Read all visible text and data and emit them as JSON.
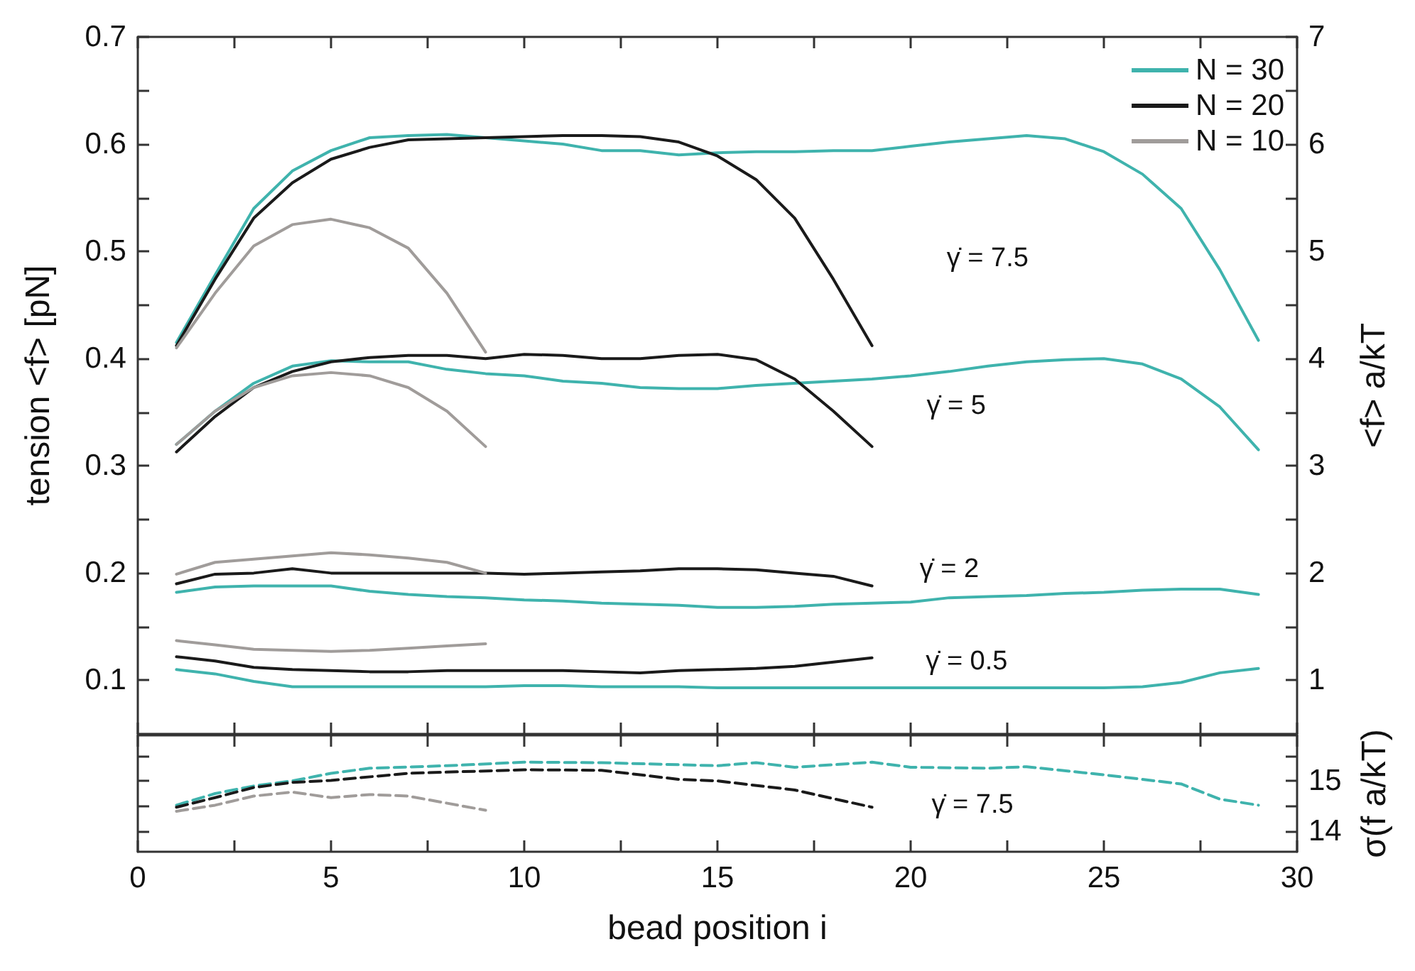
{
  "chart_data": [
    {
      "type": "line",
      "ylabel": "tension <f> [pN]",
      "y2label": "<f> a/kT",
      "xlim": [
        0,
        30
      ],
      "xticks": [
        0,
        {
          "value": 2.5,
          "label": null
        },
        5,
        {
          "value": 7.5,
          "label": null
        },
        10,
        {
          "value": 12.5,
          "label": null
        },
        15,
        {
          "value": 17.5,
          "label": null
        },
        20,
        {
          "value": 22.5,
          "label": null
        },
        25,
        {
          "value": 27.5,
          "label": null
        },
        30
      ],
      "ylim": [
        0.05,
        0.7
      ],
      "yticks": [
        0.1,
        {
          "value": 0.15,
          "label": null
        },
        0.2,
        {
          "value": 0.25,
          "label": null
        },
        0.3,
        {
          "value": 0.35,
          "label": null
        },
        0.4,
        {
          "value": 0.45,
          "label": null
        },
        0.5,
        {
          "value": 0.55,
          "label": null
        },
        0.6,
        {
          "value": 0.65,
          "label": null
        },
        0.7
      ],
      "y2lim": [
        0.5,
        7
      ],
      "y2ticks": [
        1,
        {
          "value": 1.5,
          "label": null
        },
        2,
        {
          "value": 2.5,
          "label": null
        },
        3,
        {
          "value": 3.5,
          "label": null
        },
        4,
        {
          "value": 4.5,
          "label": null
        },
        5,
        {
          "value": 5.5,
          "label": null
        },
        6,
        {
          "value": 6.5,
          "label": null
        },
        7
      ],
      "tick_labels": "y",
      "legend": "top right",
      "grid": false,
      "marker": "none",
      "line_style": "solid",
      "annotations": [
        "γ̇ = 7.5",
        "γ̇ = 5",
        "γ̇ = 2",
        "γ̇ = 0.5"
      ],
      "series": [
        {
          "name": "N = 30",
          "color": "#3fb3ad",
          "x": [
            1,
            2,
            3,
            4,
            5,
            6,
            7,
            8,
            9,
            10,
            11,
            12,
            13,
            14,
            15,
            16,
            17,
            18,
            19,
            20,
            21,
            22,
            23,
            24,
            25,
            26,
            27,
            28,
            29
          ],
          "values": [
            0.415,
            0.478,
            0.54,
            0.575,
            0.594,
            0.606,
            0.608,
            0.609,
            0.606,
            0.603,
            0.6,
            0.594,
            0.594,
            0.59,
            0.592,
            0.593,
            0.593,
            0.594,
            0.594,
            0.598,
            0.602,
            0.605,
            0.608,
            0.605,
            0.593,
            0.572,
            0.54,
            0.483,
            0.417
          ]
        },
        {
          "name": "N = 20",
          "color": "#1a1a1a",
          "x": [
            1,
            2,
            3,
            4,
            5,
            6,
            7,
            8,
            9,
            10,
            11,
            12,
            13,
            14,
            15,
            16,
            17,
            18,
            19
          ],
          "values": [
            0.412,
            0.474,
            0.531,
            0.564,
            0.586,
            0.597,
            0.604,
            0.605,
            0.606,
            0.607,
            0.608,
            0.608,
            0.607,
            0.602,
            0.589,
            0.567,
            0.531,
            0.474,
            0.412
          ]
        },
        {
          "name": "N = 10",
          "color": "#a09c9a",
          "x": [
            1,
            2,
            3,
            4,
            5,
            6,
            7,
            8,
            9
          ],
          "values": [
            0.41,
            0.461,
            0.505,
            0.525,
            0.53,
            0.522,
            0.503,
            0.461,
            0.406
          ]
        },
        {
          "color": "#3fb3ad",
          "x": [
            1,
            2,
            3,
            4,
            5,
            6,
            7,
            8,
            9,
            10,
            11,
            12,
            13,
            14,
            15,
            16,
            17,
            18,
            19,
            20,
            21,
            22,
            23,
            24,
            25,
            26,
            27,
            28,
            29
          ],
          "values": [
            0.32,
            0.351,
            0.377,
            0.393,
            0.398,
            0.397,
            0.397,
            0.39,
            0.386,
            0.384,
            0.379,
            0.377,
            0.373,
            0.372,
            0.372,
            0.375,
            0.377,
            0.379,
            0.381,
            0.384,
            0.388,
            0.393,
            0.397,
            0.399,
            0.4,
            0.395,
            0.381,
            0.355,
            0.315
          ]
        },
        {
          "color": "#1a1a1a",
          "x": [
            1,
            2,
            3,
            4,
            5,
            6,
            7,
            8,
            9,
            10,
            11,
            12,
            13,
            14,
            15,
            16,
            17,
            18,
            19
          ],
          "values": [
            0.313,
            0.346,
            0.373,
            0.388,
            0.397,
            0.401,
            0.403,
            0.403,
            0.4,
            0.404,
            0.403,
            0.4,
            0.4,
            0.403,
            0.404,
            0.399,
            0.381,
            0.351,
            0.318
          ]
        },
        {
          "color": "#a09c9a",
          "x": [
            1,
            2,
            3,
            4,
            5,
            6,
            7,
            8,
            9
          ],
          "values": [
            0.32,
            0.351,
            0.373,
            0.384,
            0.387,
            0.384,
            0.373,
            0.351,
            0.318
          ]
        },
        {
          "color": "#3fb3ad",
          "x": [
            1,
            2,
            3,
            4,
            5,
            6,
            7,
            8,
            9,
            10,
            11,
            12,
            13,
            14,
            15,
            16,
            17,
            18,
            19,
            20,
            21,
            22,
            23,
            24,
            25,
            26,
            27,
            28,
            29
          ],
          "values": [
            0.182,
            0.187,
            0.188,
            0.188,
            0.188,
            0.183,
            0.18,
            0.178,
            0.177,
            0.175,
            0.174,
            0.172,
            0.171,
            0.17,
            0.168,
            0.168,
            0.169,
            0.171,
            0.172,
            0.173,
            0.177,
            0.178,
            0.179,
            0.181,
            0.182,
            0.184,
            0.185,
            0.185,
            0.18
          ]
        },
        {
          "color": "#1a1a1a",
          "x": [
            1,
            2,
            3,
            4,
            5,
            6,
            7,
            8,
            9,
            10,
            11,
            12,
            13,
            14,
            15,
            16,
            17,
            18,
            19
          ],
          "values": [
            0.19,
            0.199,
            0.2,
            0.204,
            0.2,
            0.2,
            0.2,
            0.2,
            0.2,
            0.199,
            0.2,
            0.201,
            0.202,
            0.204,
            0.204,
            0.203,
            0.2,
            0.197,
            0.188
          ]
        },
        {
          "color": "#a09c9a",
          "x": [
            1,
            2,
            3,
            4,
            5,
            6,
            7,
            8,
            9
          ],
          "values": [
            0.199,
            0.21,
            0.213,
            0.216,
            0.219,
            0.217,
            0.214,
            0.21,
            0.2
          ]
        },
        {
          "color": "#3fb3ad",
          "x": [
            1,
            2,
            3,
            4,
            5,
            6,
            7,
            8,
            9,
            10,
            11,
            12,
            13,
            14,
            15,
            16,
            17,
            18,
            19,
            20,
            21,
            22,
            23,
            24,
            25,
            26,
            27,
            28,
            29
          ],
          "values": [
            0.11,
            0.106,
            0.099,
            0.094,
            0.094,
            0.094,
            0.094,
            0.094,
            0.094,
            0.095,
            0.095,
            0.094,
            0.094,
            0.094,
            0.093,
            0.093,
            0.093,
            0.093,
            0.093,
            0.093,
            0.093,
            0.093,
            0.093,
            0.093,
            0.093,
            0.094,
            0.098,
            0.107,
            0.111
          ]
        },
        {
          "color": "#1a1a1a",
          "x": [
            1,
            2,
            3,
            4,
            5,
            6,
            7,
            8,
            9,
            10,
            11,
            12,
            13,
            14,
            15,
            16,
            17,
            18,
            19
          ],
          "values": [
            0.122,
            0.118,
            0.112,
            0.11,
            0.109,
            0.108,
            0.108,
            0.109,
            0.109,
            0.109,
            0.109,
            0.108,
            0.107,
            0.109,
            0.11,
            0.111,
            0.113,
            0.117,
            0.121
          ]
        },
        {
          "color": "#a09c9a",
          "x": [
            1,
            2,
            3,
            4,
            5,
            6,
            7,
            8,
            9
          ],
          "values": [
            0.137,
            0.133,
            0.129,
            0.128,
            0.127,
            0.128,
            0.13,
            0.132,
            0.134
          ]
        }
      ]
    },
    {
      "type": "line",
      "xlabel": "bead position i",
      "y2label": "σ(f a/kT)",
      "xlim": [
        0,
        30
      ],
      "xticks": [
        0,
        {
          "value": 2.5,
          "label": null
        },
        5,
        {
          "value": 7.5,
          "label": null
        },
        10,
        {
          "value": 12.5,
          "label": null
        },
        15,
        {
          "value": 17.5,
          "label": null
        },
        20,
        {
          "value": 22.5,
          "label": null
        },
        25,
        {
          "value": 27.5,
          "label": null
        },
        30
      ],
      "y2lim": [
        13.6,
        15.9
      ],
      "y2ticks": [
        14,
        {
          "value": 14.5,
          "label": null
        },
        15,
        {
          "value": 15.5,
          "label": null
        }
      ],
      "grid": false,
      "marker": "none",
      "line_style": "dashed",
      "annotations": [
        "γ̇ = 7.5"
      ],
      "series": [
        {
          "color": "#3fb3ad",
          "axis": "y2",
          "x": [
            1,
            2,
            3,
            4,
            5,
            6,
            8,
            10,
            12,
            15,
            16,
            17,
            19,
            20,
            22,
            23,
            25,
            27,
            28,
            29
          ],
          "values": [
            14.52,
            14.75,
            14.9,
            15.0,
            15.15,
            15.25,
            15.3,
            15.37,
            15.36,
            15.3,
            15.36,
            15.27,
            15.37,
            15.27,
            15.25,
            15.28,
            15.12,
            14.94,
            14.64,
            14.52
          ]
        },
        {
          "color": "#1a1a1a",
          "axis": "y2",
          "x": [
            1,
            2,
            3,
            4,
            5,
            7,
            10,
            12,
            14,
            15,
            17,
            19
          ],
          "values": [
            14.48,
            14.67,
            14.87,
            14.97,
            15.01,
            15.15,
            15.22,
            15.21,
            15.03,
            15.0,
            14.82,
            14.48
          ]
        },
        {
          "color": "#a09c9a",
          "axis": "y2",
          "x": [
            1,
            2,
            3,
            4,
            5,
            6,
            7,
            9
          ],
          "values": [
            14.4,
            14.52,
            14.7,
            14.78,
            14.67,
            14.73,
            14.7,
            14.42
          ]
        }
      ]
    }
  ]
}
